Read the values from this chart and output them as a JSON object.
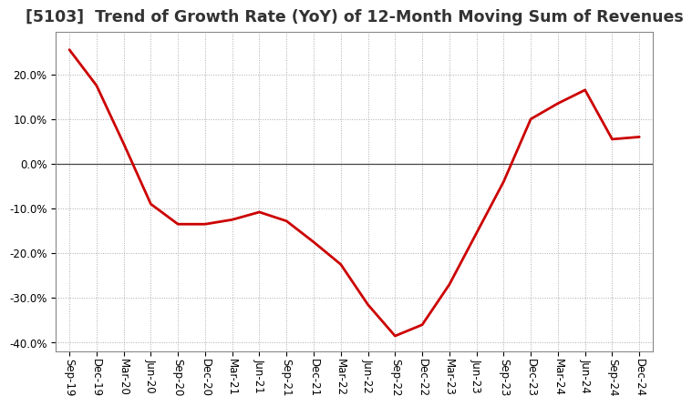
{
  "title": "[5103]  Trend of Growth Rate (YoY) of 12-Month Moving Sum of Revenues",
  "x_labels": [
    "Sep-19",
    "Dec-19",
    "Mar-20",
    "Jun-20",
    "Sep-20",
    "Dec-20",
    "Mar-21",
    "Jun-21",
    "Sep-21",
    "Dec-21",
    "Mar-22",
    "Jun-22",
    "Sep-22",
    "Dec-22",
    "Mar-23",
    "Jun-23",
    "Sep-23",
    "Dec-23",
    "Mar-24",
    "Jun-24",
    "Sep-24",
    "Dec-24"
  ],
  "y_values": [
    0.255,
    0.175,
    0.045,
    -0.09,
    -0.135,
    -0.135,
    -0.125,
    -0.108,
    -0.128,
    -0.175,
    -0.225,
    -0.315,
    -0.385,
    -0.36,
    -0.27,
    -0.155,
    -0.04,
    0.1,
    0.135,
    0.165,
    0.055,
    0.06
  ],
  "line_color": "#cc0000",
  "line_width": 2.0,
  "ylim": [
    -0.42,
    0.295
  ],
  "yticks": [
    -0.4,
    -0.3,
    -0.2,
    -0.1,
    0.0,
    0.1,
    0.2
  ],
  "background_color": "#ffffff",
  "plot_bg_color": "#ffffff",
  "grid_color": "#aaaaaa",
  "title_fontsize": 12.5,
  "axis_fontsize": 8.5,
  "zero_line_color": "#444444"
}
